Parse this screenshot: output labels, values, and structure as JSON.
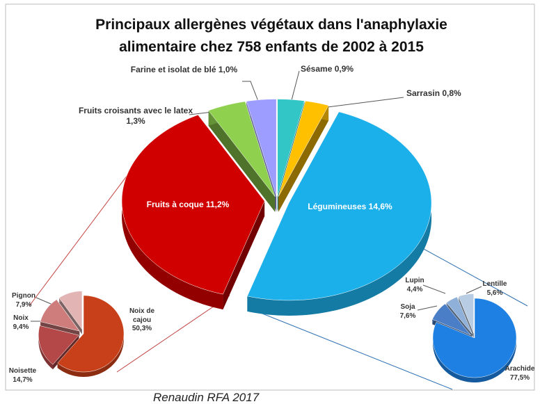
{
  "chart_data": [
    {
      "type": "pie",
      "title": [
        "Principaux allergènes végétaux dans l'anaphylaxie",
        "alimentaire chez 758 enfants de 2002 à 2015"
      ],
      "categories": [
        "Sésame",
        "Sarrasin",
        "Légumineuses",
        "Fruits à coque",
        "Fruits croisants avec le latex",
        "Farine et isolat de blé"
      ],
      "values": [
        0.9,
        0.8,
        14.6,
        11.2,
        1.3,
        1.0
      ],
      "value_labels": [
        "0,9%",
        "0,8%",
        "14,6%",
        "11,2%",
        "1,3%",
        "1,0%"
      ],
      "colors": [
        "#33c6c6",
        "#ffc000",
        "#1cb0ea",
        "#d00000",
        "#8fd14f",
        "#9d9dff"
      ]
    },
    {
      "type": "pie",
      "categories": [
        "Noix de cajou",
        "Noisette",
        "Noix",
        "Pignon"
      ],
      "values": [
        50.3,
        14.7,
        9.4,
        7.9
      ],
      "value_labels": [
        "50,3%",
        "14,7%",
        "9,4%",
        "7,9%"
      ],
      "colors": [
        "#c8401a",
        "#b44848",
        "#cf7c7c",
        "#e2b4b4"
      ]
    },
    {
      "type": "pie",
      "categories": [
        "Arachide",
        "Soja",
        "Lupin",
        "Lentille"
      ],
      "values": [
        77.5,
        7.6,
        4.4,
        5.6
      ],
      "value_labels": [
        "77,5%",
        "7,6%",
        "4,4%",
        "5,6%"
      ],
      "colors": [
        "#1e80e2",
        "#4a7fc8",
        "#8fb0d8",
        "#b8cce4"
      ]
    }
  ],
  "source": "Renaudin RFA 2017"
}
